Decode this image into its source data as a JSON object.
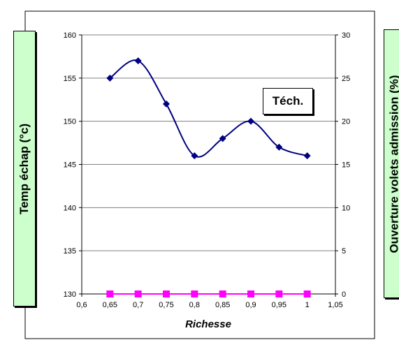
{
  "chart_data": {
    "type": "line",
    "xlabel": "Richesse",
    "ylabel_left": "Temp échap (°c)",
    "ylabel_right": "Ouverture volets admission (%)",
    "annotation": "Téch.",
    "x_ticks": [
      "0,6",
      "0,65",
      "0,7",
      "0,75",
      "0,8",
      "0,85",
      "0,9",
      "0,95",
      "1",
      "1,05"
    ],
    "xlim": [
      0.6,
      1.05
    ],
    "ylim_left": [
      130,
      160
    ],
    "ylim_right": [
      0,
      30
    ],
    "y_ticks_left": [
      "130",
      "135",
      "140",
      "145",
      "150",
      "155",
      "160"
    ],
    "y_ticks_right": [
      "0",
      "5",
      "10",
      "15",
      "20",
      "25",
      "30"
    ],
    "grid": "horizontal",
    "series": [
      {
        "axis": "left",
        "marker": "diamond",
        "color": "#000080",
        "smooth": true,
        "x": [
          0.65,
          0.7,
          0.75,
          0.8,
          0.85,
          0.9,
          0.95,
          1.0
        ],
        "values": [
          155,
          157,
          152,
          146,
          148,
          150,
          147,
          146
        ]
      },
      {
        "axis": "right",
        "marker": "square",
        "color": "#ff00ff",
        "smooth": false,
        "x": [
          0.65,
          0.7,
          0.75,
          0.8,
          0.85,
          0.9,
          0.95,
          1.0
        ],
        "values": [
          0,
          0,
          0,
          0,
          0,
          0,
          0,
          0
        ]
      }
    ]
  }
}
